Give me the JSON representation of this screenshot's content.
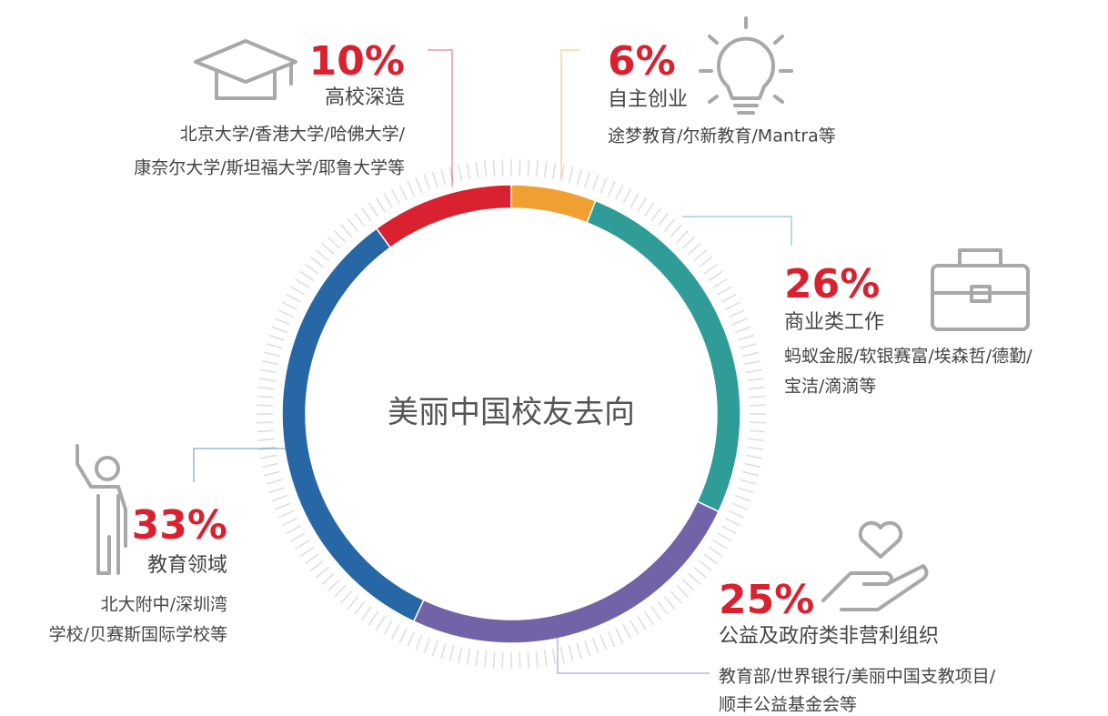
{
  "chart_data": {
    "type": "pie",
    "donut": true,
    "title": "美丽中国校友去向",
    "categories": [
      "自主创业",
      "商业类工作",
      "公益及政府类非营利组织",
      "教育领域",
      "高校深造"
    ],
    "values": [
      6,
      26,
      25,
      33,
      10
    ],
    "value_labels": [
      "6%",
      "26%",
      "25%",
      "33%",
      "10%"
    ],
    "colors": [
      "#f0a032",
      "#2f9c98",
      "#7263a8",
      "#2767a6",
      "#d9212f"
    ],
    "descriptions": [
      [
        "途梦教育/尔新教育/Mantra等"
      ],
      [
        "蚂蚁金服/软银赛富/埃森哲/德勤/",
        "宝洁/滴滴等"
      ],
      [
        "教育部/世界银行/美丽中国支教项目/",
        "顺丰公益基金会等"
      ],
      [
        "北大附中/深圳湾",
        "学校/贝赛斯国际学校等"
      ],
      [
        "北京大学/香港大学/哈佛大学/",
        "康奈尔大学/斯坦福大学/耶鲁大学等"
      ]
    ]
  }
}
